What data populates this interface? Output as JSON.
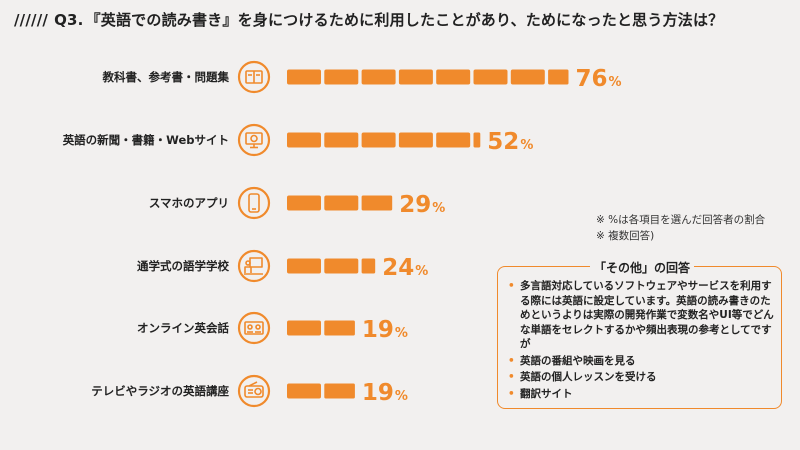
{
  "question": {
    "slashes": "//////",
    "number": "Q3.",
    "text": "『英語での読み書き』を身につけるために利用したことがあり、ためになったと思う方法は？"
  },
  "colors": {
    "accent": "#f08a2c",
    "text": "#222222",
    "background": "#f2f0ef"
  },
  "chart_data": {
    "type": "bar",
    "orientation": "horizontal",
    "unit": "%",
    "categories": [
      "教科書、参考書・問題集",
      "英語の新聞・書籍・Webサイト",
      "スマホのアプリ",
      "通学式の語学学校",
      "オンライン英会話",
      "テレビやラジオの英語講座"
    ],
    "icons": [
      "book-icon",
      "monitor-web-icon",
      "smartphone-icon",
      "classroom-icon",
      "video-lesson-icon",
      "radio-icon"
    ],
    "values": [
      76,
      52,
      29,
      24,
      19,
      19
    ],
    "value_labels": [
      "76",
      "52",
      "29",
      "24",
      "19",
      "19"
    ],
    "xlim": [
      0,
      80
    ],
    "grid": false,
    "legend": "none"
  },
  "notes": [
    "※ %は各項目を選んだ回答者の割合",
    "※ 複数回答)"
  ],
  "other": {
    "title": "「その他」の回答",
    "items": [
      "多言語対応しているソフトウェアやサービスを利用する際には英語に設定しています。英語の読み書きのためというよりは実際の開発作業で変数名やUI等でどんな単語をセレクトするかや頻出表現の参考としてですが",
      "英語の番組や映画を見る",
      "英語の個人レッスンを受ける",
      "翻訳サイト"
    ]
  }
}
